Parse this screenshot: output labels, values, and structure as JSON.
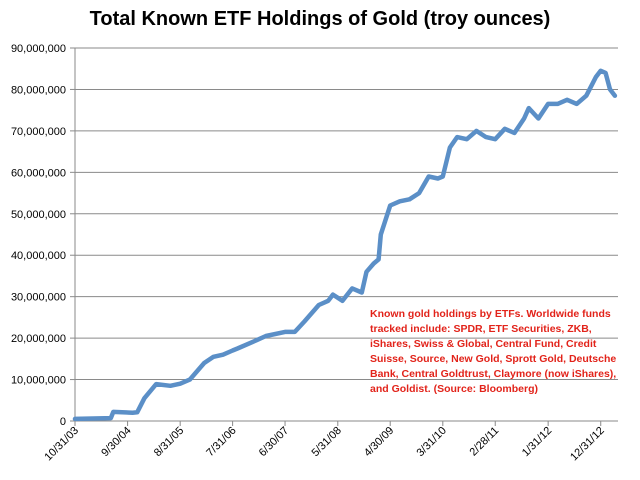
{
  "chart_data": {
    "type": "line",
    "title": "Total Known ETF Holdings of Gold (troy ounces)",
    "xlabel": "",
    "ylabel": "",
    "ylim": [
      0,
      90000000
    ],
    "y_ticks": [
      0,
      10000000,
      20000000,
      30000000,
      40000000,
      50000000,
      60000000,
      70000000,
      80000000,
      90000000
    ],
    "y_tick_labels": [
      "0",
      "10,000,000",
      "20,000,000",
      "30,000,000",
      "40,000,000",
      "50,000,000",
      "60,000,000",
      "70,000,000",
      "80,000,000",
      "90,000,000"
    ],
    "x_tick_labels": [
      "10/31/03",
      "9/30/04",
      "8/31/05",
      "7/31/06",
      "6/30/07",
      "5/31/08",
      "4/30/09",
      "3/31/10",
      "2/28/11",
      "1/31/12",
      "12/31/12"
    ],
    "grid": "horizontal",
    "series": [
      {
        "color": "#5b8fc7",
        "x": [
          "2003-10-31",
          "2004-06-15",
          "2004-07-01",
          "2004-11-01",
          "2004-11-30",
          "2005-01-15",
          "2005-03-31",
          "2005-06-30",
          "2005-08-31",
          "2005-10-31",
          "2006-01-31",
          "2006-03-31",
          "2006-05-31",
          "2006-07-31",
          "2006-08-31",
          "2006-12-31",
          "2007-02-28",
          "2007-06-30",
          "2007-08-31",
          "2007-10-31",
          "2008-01-31",
          "2008-03-31",
          "2008-04-30",
          "2008-06-30",
          "2008-08-31",
          "2008-10-31",
          "2008-11-30",
          "2009-01-15",
          "2009-02-15",
          "2009-03-01",
          "2009-04-30",
          "2009-06-30",
          "2009-08-31",
          "2009-10-31",
          "2009-12-31",
          "2010-02-28",
          "2010-03-31",
          "2010-05-15",
          "2010-06-30",
          "2010-08-31",
          "2010-10-31",
          "2010-12-31",
          "2011-02-28",
          "2011-04-30",
          "2011-06-30",
          "2011-08-31",
          "2011-09-30",
          "2011-11-30",
          "2012-01-31",
          "2012-03-31",
          "2012-05-31",
          "2012-07-31",
          "2012-09-30",
          "2012-11-30",
          "2012-12-31",
          "2013-01-31",
          "2013-02-28",
          "2013-03-31"
        ],
        "y": [
          500000,
          700000,
          2200000,
          2000000,
          2100000,
          5500000,
          8900000,
          8500000,
          9000000,
          10000000,
          14000000,
          15500000,
          16000000,
          17000000,
          17500000,
          19500000,
          20500000,
          21500000,
          21500000,
          24000000,
          28000000,
          29000000,
          30500000,
          29000000,
          32000000,
          31000000,
          36000000,
          38000000,
          39000000,
          45000000,
          52000000,
          53000000,
          53500000,
          55000000,
          59000000,
          58500000,
          59000000,
          66000000,
          68500000,
          68000000,
          70000000,
          68500000,
          68000000,
          70500000,
          69500000,
          73000000,
          75500000,
          73000000,
          76500000,
          76500000,
          77500000,
          76500000,
          78500000,
          83000000,
          84500000,
          84000000,
          80000000,
          78500000
        ]
      }
    ],
    "annotation": "Known gold holdings by ETFs. Worldwide funds tracked include: SPDR, ETF Securities, ZKB, iShares, Swiss & Global, Central Fund, Credit Suisse, Source, New Gold, Sprott Gold, Deutsche Bank, Central Goldtrust, Claymore (now iShares), and Goldist. (Source: Bloomberg)"
  }
}
